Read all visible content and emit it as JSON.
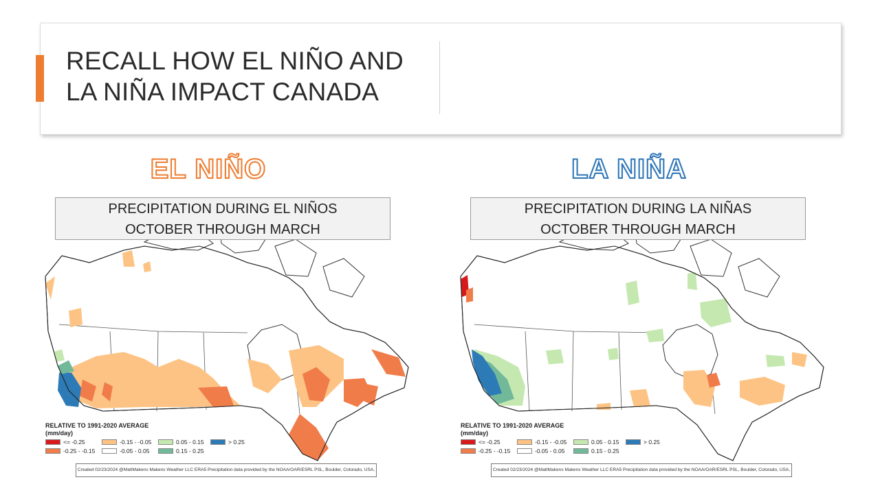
{
  "slide": {
    "title_line1": "RECALL HOW EL NIÑO AND",
    "title_line2": "LA NIÑA IMPACT CANADA",
    "accent_color": "#ed7d31"
  },
  "panels": [
    {
      "heading": "EL NIÑO",
      "heading_color": "#ed7d31",
      "caption_line1": "PRECIPITATION DURING EL NIÑOS",
      "caption_line2": "OCTOBER THROUGH MARCH",
      "map_icon": "canada-precipitation-map"
    },
    {
      "heading": "LA NIÑA",
      "heading_color": "#2e75b6",
      "caption_line1": "PRECIPITATION DURING LA NIÑAS",
      "caption_line2": "OCTOBER THROUGH MARCH",
      "map_icon": "canada-precipitation-map"
    }
  ],
  "legend": {
    "title": "RELATIVE TO 1991-2020 AVERAGE",
    "unit": "(mm/day)",
    "items": [
      {
        "label": "<= -0.25",
        "color": "#d7191c"
      },
      {
        "label": "-0.25 - -0.15",
        "color": "#f07c4a"
      },
      {
        "label": "-0.15 - -0.05",
        "color": "#fdc384"
      },
      {
        "label": "-0.05 - 0.05",
        "color": "#ffffff"
      },
      {
        "label": "0.05 - 0.15",
        "color": "#c5e8b0"
      },
      {
        "label": "0.15 - 0.25",
        "color": "#72b99a"
      },
      {
        "label": "> 0.25",
        "color": "#2c7bb6"
      }
    ]
  },
  "credit": "Created 02/23/2024 @MattMakens Makens Weather LLC ERA5 Precipitation data provided by the NOAA/OAR/ESRL PSL, Boulder, Colorado, USA,"
}
